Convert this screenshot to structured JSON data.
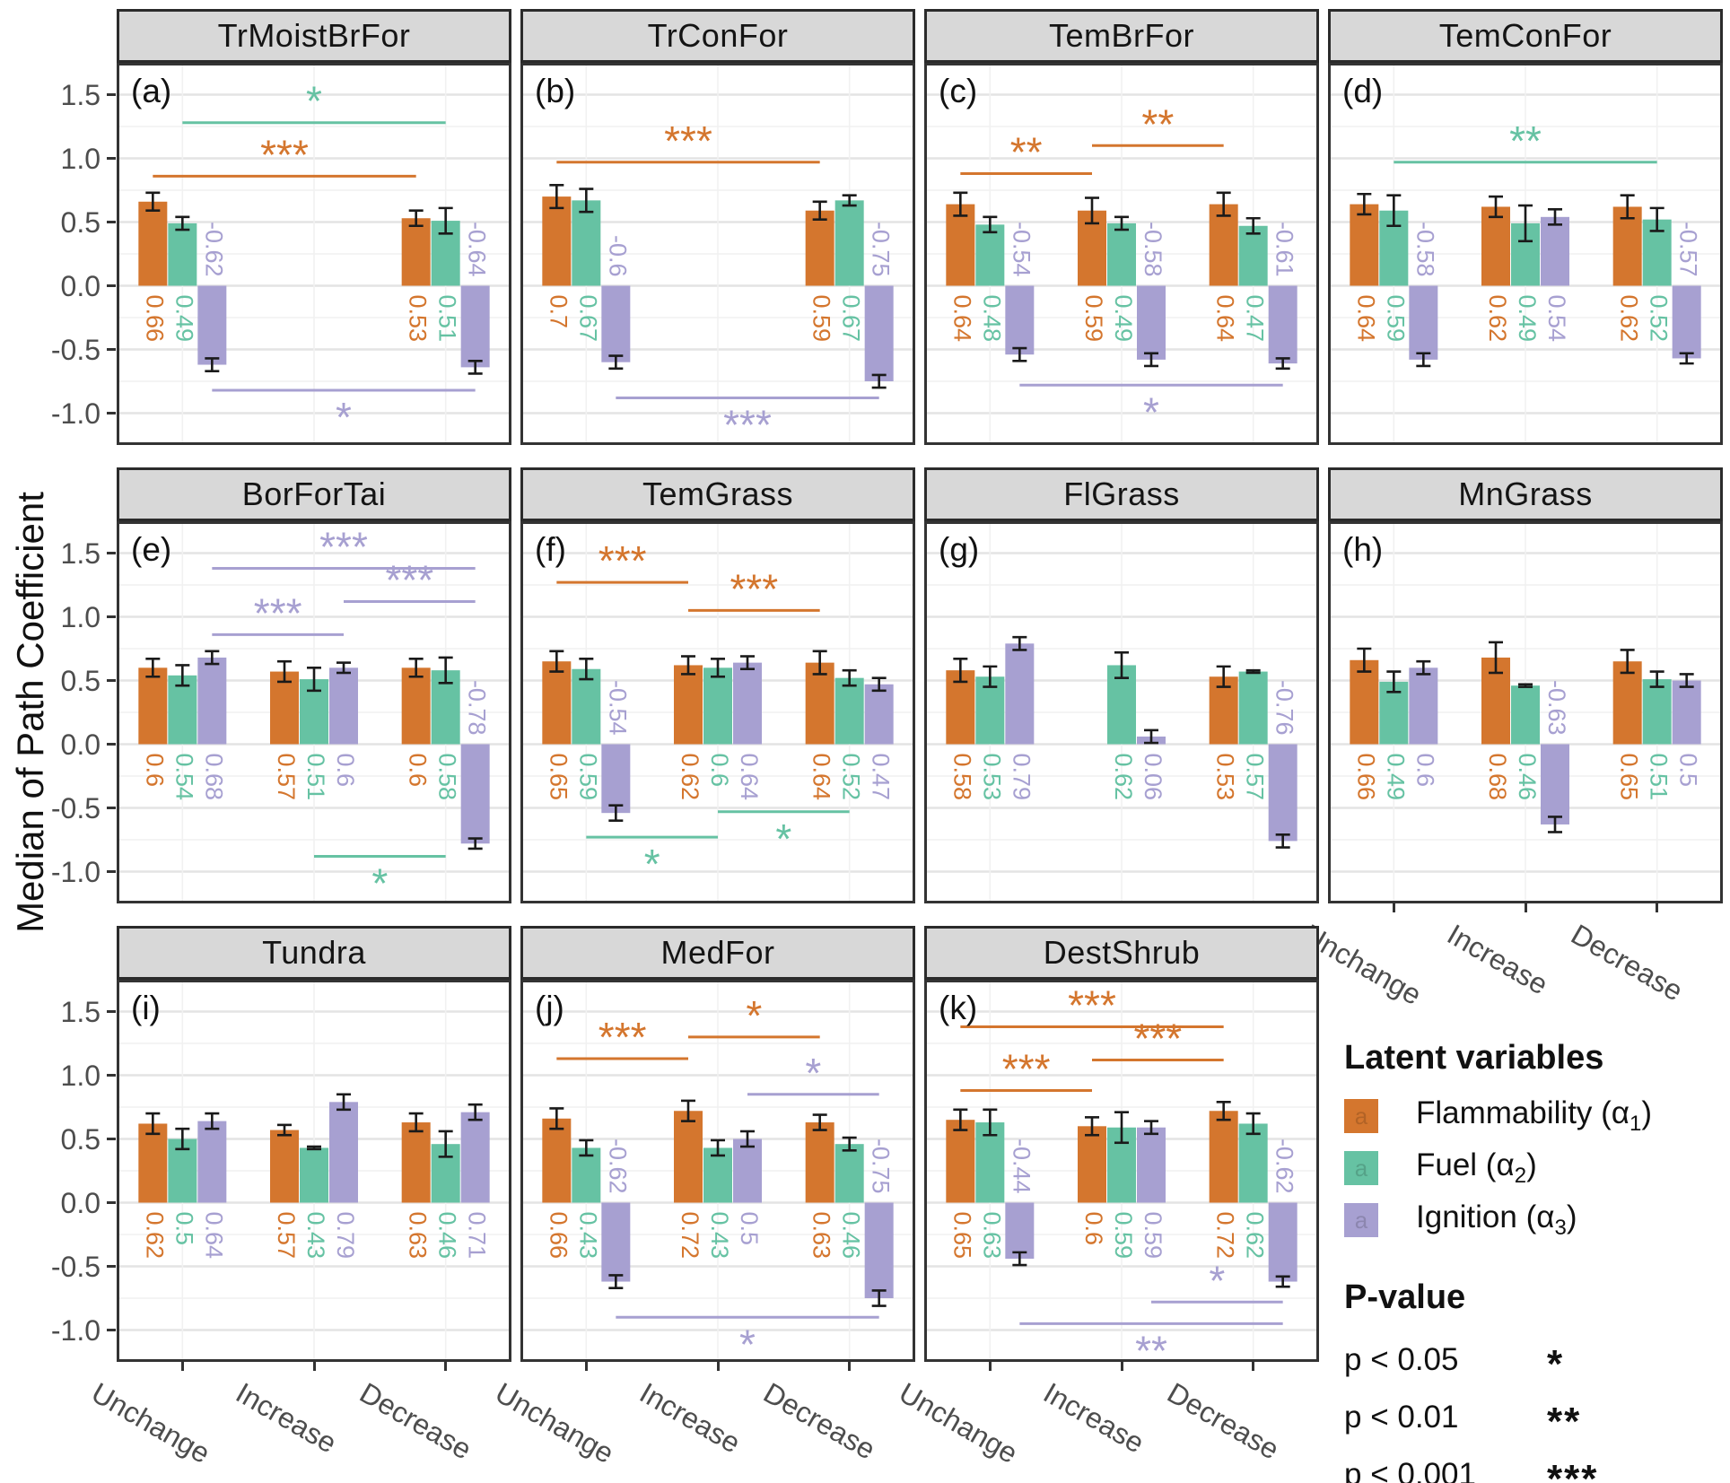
{
  "figure_title": "",
  "y_axis_title": "Median of Path Coefficient",
  "legend": {
    "latent_title": "Latent variables",
    "key_letter": "a",
    "items": [
      {
        "pre": "Flammability (α",
        "sub": "1",
        "post": ")",
        "color": "#d4762e"
      },
      {
        "pre": "Fuel (α",
        "sub": "2",
        "post": ")",
        "color": "#66c2a3"
      },
      {
        "pre": "Ignition (α",
        "sub": "3",
        "post": ")",
        "color": "#a7a0d1"
      }
    ],
    "pvalue_title": "P-value",
    "pvalues": [
      {
        "label": "p < 0.05",
        "stars": "*"
      },
      {
        "label": "p < 0.01",
        "stars": "**"
      },
      {
        "label": "p < 0.001",
        "stars": "***"
      }
    ]
  },
  "chart_data": {
    "type": "bar",
    "title": "",
    "ylabel": "Median of Path Coefficient",
    "ylim": [
      -1.25,
      1.75
    ],
    "y_ticks": [
      1.5,
      1.0,
      0.5,
      0.0,
      -0.5,
      -1.0
    ],
    "categories": [
      "Unchange",
      "Increase",
      "Decrease"
    ],
    "series_names": [
      "Flammability (α1)",
      "Fuel (α2)",
      "Ignition (α3)"
    ],
    "series_keys": [
      "flammability",
      "fuel",
      "ignition"
    ],
    "series_colors": [
      "#d4762e",
      "#66c2a3",
      "#a7a0d1"
    ],
    "grid": true,
    "legend_position": "bottom-right-cell",
    "facets": [
      {
        "tag": "(a)",
        "title": "TrMoistBrFor",
        "values": [
          [
            0.66,
            0.49,
            -0.62
          ],
          null,
          [
            0.53,
            0.51,
            -0.64
          ]
        ],
        "errors": [
          [
            0.07,
            0.05,
            0.05
          ],
          null,
          [
            0.06,
            0.1,
            0.05
          ]
        ],
        "sig": [
          {
            "series": 1,
            "from": 0,
            "to": 2,
            "stars": "*",
            "y": 1.28,
            "side": "above"
          },
          {
            "series": 0,
            "from": 0,
            "to": 2,
            "stars": "***",
            "y": 0.86,
            "side": "above"
          },
          {
            "series": 2,
            "from": 0,
            "to": 2,
            "stars": "*",
            "y": -0.82,
            "side": "below"
          }
        ]
      },
      {
        "tag": "(b)",
        "title": "TrConFor",
        "values": [
          [
            0.7,
            0.67,
            -0.6
          ],
          null,
          [
            0.59,
            0.67,
            -0.75
          ]
        ],
        "errors": [
          [
            0.09,
            0.09,
            0.05
          ],
          null,
          [
            0.07,
            0.04,
            0.05
          ]
        ],
        "sig": [
          {
            "series": 0,
            "from": 0,
            "to": 2,
            "stars": "***",
            "y": 0.97,
            "side": "above"
          },
          {
            "series": 2,
            "from": 0,
            "to": 2,
            "stars": "***",
            "y": -0.88,
            "side": "below"
          }
        ]
      },
      {
        "tag": "(c)",
        "title": "TemBrFor",
        "values": [
          [
            0.64,
            0.48,
            -0.54
          ],
          [
            0.59,
            0.49,
            -0.58
          ],
          [
            0.64,
            0.47,
            -0.61
          ]
        ],
        "errors": [
          [
            0.09,
            0.06,
            0.05
          ],
          [
            0.1,
            0.05,
            0.05
          ],
          [
            0.09,
            0.06,
            0.04
          ]
        ],
        "sig": [
          {
            "series": 0,
            "from": 0,
            "to": 1,
            "stars": "**",
            "y": 0.88,
            "side": "above"
          },
          {
            "series": 0,
            "from": 1,
            "to": 2,
            "stars": "**",
            "y": 1.1,
            "side": "above"
          },
          {
            "series": 2,
            "from": 0,
            "to": 2,
            "stars": "*",
            "y": -0.78,
            "side": "below"
          }
        ]
      },
      {
        "tag": "(d)",
        "title": "TemConFor",
        "values": [
          [
            0.64,
            0.59,
            -0.58
          ],
          [
            0.62,
            0.49,
            0.54
          ],
          [
            0.62,
            0.52,
            -0.57
          ]
        ],
        "errors": [
          [
            0.08,
            0.12,
            0.05
          ],
          [
            0.08,
            0.14,
            0.06
          ],
          [
            0.09,
            0.09,
            0.04
          ]
        ],
        "sig": [
          {
            "series": 1,
            "from": 0,
            "to": 2,
            "stars": "**",
            "y": 0.97,
            "side": "above"
          }
        ]
      },
      {
        "tag": "(e)",
        "title": "BorForTai",
        "values": [
          [
            0.6,
            0.54,
            0.68
          ],
          [
            0.57,
            0.51,
            0.6
          ],
          [
            0.6,
            0.58,
            -0.78
          ]
        ],
        "errors": [
          [
            0.07,
            0.08,
            0.05
          ],
          [
            0.08,
            0.09,
            0.04
          ],
          [
            0.07,
            0.1,
            0.04
          ]
        ],
        "sig": [
          {
            "series": 2,
            "from": 0,
            "to": 2,
            "stars": "***",
            "y": 1.38,
            "side": "above"
          },
          {
            "series": 2,
            "from": 1,
            "to": 2,
            "stars": "***",
            "y": 1.12,
            "side": "above"
          },
          {
            "series": 2,
            "from": 0,
            "to": 1,
            "stars": "***",
            "y": 0.86,
            "side": "above"
          },
          {
            "series": 1,
            "from": 1,
            "to": 2,
            "stars": "*",
            "y": -0.88,
            "side": "below"
          }
        ]
      },
      {
        "tag": "(f)",
        "title": "TemGrass",
        "values": [
          [
            0.65,
            0.59,
            -0.54
          ],
          [
            0.62,
            0.6,
            0.64
          ],
          [
            0.64,
            0.52,
            0.47
          ]
        ],
        "errors": [
          [
            0.08,
            0.08,
            0.06
          ],
          [
            0.07,
            0.07,
            0.05
          ],
          [
            0.09,
            0.06,
            0.05
          ]
        ],
        "sig": [
          {
            "series": 0,
            "from": 0,
            "to": 1,
            "stars": "***",
            "y": 1.27,
            "side": "above"
          },
          {
            "series": 0,
            "from": 1,
            "to": 2,
            "stars": "***",
            "y": 1.05,
            "side": "above"
          },
          {
            "series": 1,
            "from": 1,
            "to": 2,
            "stars": "*",
            "y": -0.53,
            "side": "below"
          },
          {
            "series": 1,
            "from": 0,
            "to": 1,
            "stars": "*",
            "y": -0.73,
            "side": "below"
          }
        ]
      },
      {
        "tag": "(g)",
        "title": "FlGrass",
        "values": [
          [
            0.58,
            0.53,
            0.79
          ],
          [
            null,
            0.62,
            0.06
          ],
          [
            0.53,
            0.57,
            -0.76
          ]
        ],
        "errors": [
          [
            0.09,
            0.08,
            0.05
          ],
          [
            null,
            0.1,
            0.05
          ],
          [
            0.08,
            0.01,
            0.05
          ]
        ],
        "sig": []
      },
      {
        "tag": "(h)",
        "title": "MnGrass",
        "values": [
          [
            0.66,
            0.49,
            0.6
          ],
          [
            0.68,
            0.46,
            -0.63
          ],
          [
            0.65,
            0.51,
            0.5
          ]
        ],
        "errors": [
          [
            0.09,
            0.08,
            0.05
          ],
          [
            0.12,
            0.01,
            0.06
          ],
          [
            0.09,
            0.06,
            0.05
          ]
        ],
        "sig": []
      },
      {
        "tag": "(i)",
        "title": "Tundra",
        "values": [
          [
            0.62,
            0.5,
            0.64
          ],
          [
            0.57,
            0.43,
            0.79
          ],
          [
            0.63,
            0.46,
            0.71
          ]
        ],
        "errors": [
          [
            0.08,
            0.08,
            0.06
          ],
          [
            0.04,
            0.01,
            0.06
          ],
          [
            0.07,
            0.1,
            0.06
          ]
        ],
        "sig": []
      },
      {
        "tag": "(j)",
        "title": "MedFor",
        "values": [
          [
            0.66,
            0.43,
            -0.62
          ],
          [
            0.72,
            0.43,
            0.5
          ],
          [
            0.63,
            0.46,
            -0.75
          ]
        ],
        "errors": [
          [
            0.08,
            0.06,
            0.05
          ],
          [
            0.08,
            0.06,
            0.06
          ],
          [
            0.06,
            0.05,
            0.06
          ]
        ],
        "sig": [
          {
            "series": 0,
            "from": 0,
            "to": 1,
            "stars": "***",
            "y": 1.13,
            "side": "above"
          },
          {
            "series": 0,
            "from": 1,
            "to": 2,
            "stars": "*",
            "y": 1.3,
            "side": "above"
          },
          {
            "series": 2,
            "from": 1,
            "to": 2,
            "stars": "*",
            "y": 0.85,
            "side": "above"
          },
          {
            "series": 2,
            "from": 0,
            "to": 2,
            "stars": "*",
            "y": -0.9,
            "side": "below"
          }
        ]
      },
      {
        "tag": "(k)",
        "title": "DestShrub",
        "values": [
          [
            0.65,
            0.63,
            -0.44
          ],
          [
            0.6,
            0.59,
            0.59
          ],
          [
            0.72,
            0.62,
            -0.62
          ]
        ],
        "errors": [
          [
            0.08,
            0.1,
            0.05
          ],
          [
            0.07,
            0.12,
            0.05
          ],
          [
            0.07,
            0.08,
            0.04
          ]
        ],
        "sig": [
          {
            "series": 0,
            "from": 0,
            "to": 2,
            "stars": "***",
            "y": 1.38,
            "side": "above"
          },
          {
            "series": 0,
            "from": 1,
            "to": 2,
            "stars": "***",
            "y": 1.12,
            "side": "above"
          },
          {
            "series": 0,
            "from": 0,
            "to": 1,
            "stars": "***",
            "y": 0.88,
            "side": "above"
          },
          {
            "series": 2,
            "from": 1,
            "to": 2,
            "stars": "*",
            "y": -0.78,
            "side": "above"
          },
          {
            "series": 2,
            "from": 0,
            "to": 2,
            "stars": "**",
            "y": -0.95,
            "side": "below"
          }
        ]
      }
    ]
  }
}
